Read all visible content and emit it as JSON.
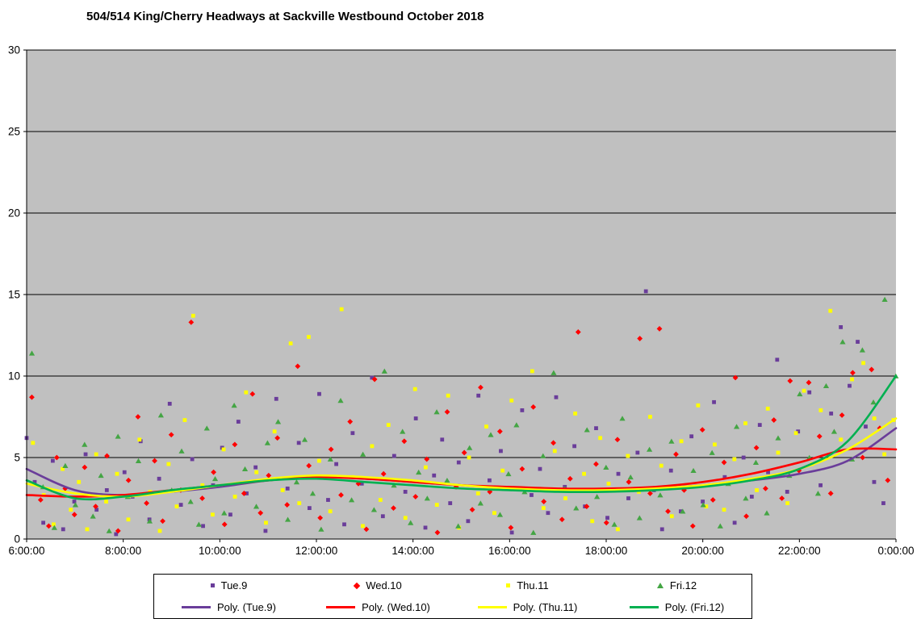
{
  "title": "504/514 King/Cherry Headways at Sackville Westbound October 2018",
  "colors": {
    "plot_bg": "#C0C0C0",
    "grid": "#000000",
    "tue": "#6A3D9A",
    "wed": "#FF0000",
    "thu": "#FFFF00",
    "fri_marker": "#44A544",
    "fri_line": "#00B050"
  },
  "chart_data": {
    "type": "scatter",
    "title": "504/514 King/Cherry Headways at Sackville Westbound October 2018",
    "xlabel": "",
    "ylabel": "",
    "x_axis": {
      "min": 6,
      "max": 24,
      "tick_hours": [
        6,
        8,
        10,
        12,
        14,
        16,
        18,
        20,
        22,
        24
      ],
      "tick_labels": [
        "6:00:00",
        "8:00:00",
        "10:00:00",
        "12:00:00",
        "14:00:00",
        "16:00:00",
        "18:00:00",
        "20:00:00",
        "22:00:00",
        "0:00:00"
      ]
    },
    "y_axis": {
      "min": 0,
      "max": 30,
      "ticks": [
        0,
        5,
        10,
        15,
        20,
        25,
        30
      ]
    },
    "grid": "horizontal",
    "legend_position": "bottom",
    "series": [
      {
        "name": "Tue.9",
        "marker": "square",
        "color": "#6A3D9A",
        "x_start": 6.0,
        "x_step": 0.2,
        "y": [
          6.2,
          3.5,
          1.0,
          4.8,
          0.6,
          2.3,
          5.2,
          1.8,
          3.0,
          0.3,
          4.1,
          2.6,
          6.0,
          1.2,
          3.7,
          8.3,
          2.1,
          4.9,
          0.8,
          3.3,
          5.6,
          1.5,
          7.2,
          2.8,
          4.4,
          0.5,
          8.6,
          3.1,
          5.9,
          1.9,
          8.9,
          2.4,
          4.6,
          0.9,
          6.5,
          3.4,
          9.9,
          1.4,
          5.1,
          2.9,
          7.4,
          0.7,
          3.9,
          6.1,
          2.2,
          4.7,
          1.1,
          8.8,
          3.6,
          5.4,
          0.4,
          7.9,
          2.7,
          4.3,
          1.6,
          8.7,
          3.2,
          5.7,
          2.0,
          6.8,
          1.3,
          4.0,
          2.5,
          5.3,
          15.2,
          3.0,
          0.6,
          4.2,
          1.7,
          6.3,
          2.3,
          8.4,
          3.8,
          1.0,
          5.0,
          2.6,
          7.0,
          4.1,
          11.0,
          2.9,
          6.6,
          9.0,
          3.3,
          7.7,
          13.0,
          9.4,
          12.1,
          6.9,
          3.5,
          2.2
        ]
      },
      {
        "name": "Wed.10",
        "marker": "diamond",
        "color": "#FF0000",
        "x_start": 6.05,
        "x_step": 0.2,
        "y": [
          8.7,
          2.4,
          0.8,
          5.0,
          3.1,
          1.5,
          4.4,
          2.0,
          5.1,
          0.5,
          3.6,
          7.5,
          2.2,
          4.8,
          1.1,
          6.4,
          3.0,
          13.3,
          2.5,
          4.1,
          0.9,
          5.8,
          2.8,
          8.9,
          1.6,
          3.9,
          6.2,
          2.1,
          10.6,
          4.5,
          1.3,
          5.5,
          2.7,
          7.2,
          3.4,
          0.6,
          9.8,
          4.0,
          1.9,
          6.0,
          2.6,
          4.9,
          0.4,
          7.8,
          3.2,
          5.3,
          1.8,
          9.3,
          2.9,
          6.6,
          0.7,
          4.3,
          8.1,
          2.3,
          5.9,
          1.2,
          3.7,
          12.7,
          2.0,
          4.6,
          1.0,
          6.1,
          3.5,
          12.3,
          2.8,
          12.9,
          1.7,
          5.2,
          3.0,
          0.8,
          6.7,
          2.4,
          4.7,
          9.9,
          1.4,
          5.6,
          3.1,
          7.3,
          2.5,
          9.7,
          4.2,
          9.6,
          6.3,
          2.8,
          7.6,
          10.2,
          5.0,
          10.4,
          6.8,
          3.6
        ]
      },
      {
        "name": "Thu.11",
        "marker": "square",
        "color": "#FFFF00",
        "x_start": 6.1,
        "x_step": 0.2,
        "y": [
          5.9,
          2.7,
          0.9,
          4.3,
          1.8,
          3.5,
          0.6,
          5.2,
          2.3,
          4.0,
          1.2,
          6.1,
          2.9,
          0.5,
          4.6,
          2.0,
          7.3,
          13.7,
          3.3,
          1.5,
          5.5,
          2.6,
          9.0,
          4.1,
          1.0,
          6.6,
          3.0,
          12.0,
          2.2,
          12.4,
          4.8,
          1.7,
          14.1,
          3.8,
          0.8,
          5.7,
          2.4,
          7.0,
          3.6,
          1.3,
          9.2,
          4.4,
          2.1,
          8.8,
          0.7,
          5.0,
          2.8,
          6.9,
          1.6,
          4.2,
          8.5,
          3.1,
          10.3,
          1.9,
          5.4,
          2.5,
          7.7,
          4.0,
          1.1,
          6.2,
          3.4,
          0.6,
          5.1,
          2.9,
          7.5,
          4.5,
          1.4,
          6.0,
          3.2,
          8.2,
          2.0,
          5.8,
          1.8,
          4.9,
          7.1,
          3.0,
          8.0,
          5.3,
          2.2,
          6.5,
          9.1,
          4.6,
          7.9,
          14.0,
          6.1,
          9.8,
          10.8,
          7.4,
          5.2,
          7.3
        ]
      },
      {
        "name": "Fri.12",
        "marker": "triangle",
        "color": "#44A544",
        "x_start": 6.15,
        "x_step": 0.2,
        "y": [
          11.4,
          3.2,
          0.7,
          4.5,
          2.1,
          5.8,
          1.4,
          3.9,
          0.5,
          6.3,
          2.6,
          4.8,
          1.1,
          7.6,
          3.0,
          5.4,
          2.3,
          0.9,
          6.8,
          3.7,
          1.6,
          8.2,
          4.3,
          2.0,
          5.9,
          7.2,
          1.2,
          3.5,
          6.1,
          2.8,
          0.6,
          4.9,
          8.5,
          2.4,
          5.2,
          1.8,
          10.3,
          3.3,
          6.6,
          1.0,
          4.1,
          2.5,
          7.8,
          3.6,
          0.8,
          5.6,
          2.2,
          6.4,
          1.5,
          4.0,
          7.0,
          2.9,
          0.4,
          5.1,
          10.2,
          3.1,
          1.9,
          6.7,
          2.6,
          4.4,
          0.9,
          7.4,
          3.8,
          1.3,
          5.5,
          2.7,
          6.0,
          1.7,
          4.2,
          2.1,
          5.3,
          0.8,
          3.4,
          6.9,
          2.5,
          4.7,
          1.6,
          6.2,
          3.9,
          8.9,
          5.0,
          2.8,
          9.4,
          6.6,
          12.1,
          4.9,
          11.6,
          8.4,
          14.7,
          10.0
        ]
      }
    ],
    "trend_lines": [
      {
        "name": "Poly. (Tue.9)",
        "color": "#6A3D9A",
        "points": [
          [
            6,
            4.3
          ],
          [
            7,
            3.0
          ],
          [
            8,
            2.7
          ],
          [
            9,
            2.9
          ],
          [
            10,
            3.2
          ],
          [
            11,
            3.6
          ],
          [
            12,
            3.8
          ],
          [
            13,
            3.7
          ],
          [
            14,
            3.5
          ],
          [
            15,
            3.3
          ],
          [
            16,
            3.1
          ],
          [
            17,
            3.0
          ],
          [
            18,
            3.0
          ],
          [
            19,
            3.1
          ],
          [
            20,
            3.3
          ],
          [
            21,
            3.6
          ],
          [
            22,
            4.0
          ],
          [
            23,
            4.8
          ],
          [
            24,
            6.8
          ]
        ]
      },
      {
        "name": "Poly. (Wed.10)",
        "color": "#FF0000",
        "points": [
          [
            6,
            2.7
          ],
          [
            7,
            2.6
          ],
          [
            8,
            2.7
          ],
          [
            9,
            3.0
          ],
          [
            10,
            3.3
          ],
          [
            11,
            3.6
          ],
          [
            12,
            3.8
          ],
          [
            13,
            3.7
          ],
          [
            14,
            3.5
          ],
          [
            15,
            3.3
          ],
          [
            16,
            3.2
          ],
          [
            17,
            3.1
          ],
          [
            18,
            3.1
          ],
          [
            19,
            3.2
          ],
          [
            20,
            3.5
          ],
          [
            21,
            4.0
          ],
          [
            22,
            4.7
          ],
          [
            23,
            5.5
          ],
          [
            24,
            5.5
          ]
        ]
      },
      {
        "name": "Poly. (Thu.11)",
        "color": "#FFFF00",
        "points": [
          [
            6,
            3.4
          ],
          [
            7,
            2.8
          ],
          [
            8,
            2.6
          ],
          [
            9,
            2.9
          ],
          [
            10,
            3.3
          ],
          [
            11,
            3.7
          ],
          [
            12,
            3.9
          ],
          [
            13,
            3.8
          ],
          [
            14,
            3.6
          ],
          [
            15,
            3.3
          ],
          [
            16,
            3.1
          ],
          [
            17,
            3.0
          ],
          [
            18,
            3.0
          ],
          [
            19,
            3.1
          ],
          [
            20,
            3.3
          ],
          [
            21,
            3.7
          ],
          [
            22,
            4.3
          ],
          [
            23,
            5.5
          ],
          [
            24,
            7.4
          ]
        ]
      },
      {
        "name": "Poly. (Fri.12)",
        "color": "#00B050",
        "points": [
          [
            6,
            3.6
          ],
          [
            7,
            2.5
          ],
          [
            8,
            2.6
          ],
          [
            9,
            3.0
          ],
          [
            10,
            3.3
          ],
          [
            11,
            3.6
          ],
          [
            12,
            3.7
          ],
          [
            13,
            3.5
          ],
          [
            14,
            3.3
          ],
          [
            15,
            3.1
          ],
          [
            16,
            3.0
          ],
          [
            17,
            2.9
          ],
          [
            18,
            2.9
          ],
          [
            19,
            3.0
          ],
          [
            20,
            3.2
          ],
          [
            21,
            3.6
          ],
          [
            22,
            4.3
          ],
          [
            23,
            6.0
          ],
          [
            24,
            10.0
          ]
        ]
      }
    ]
  },
  "legend": {
    "scatter": [
      {
        "label": "Tue.9",
        "marker": "square",
        "color": "#6A3D9A"
      },
      {
        "label": "Wed.10",
        "marker": "diamond",
        "color": "#FF0000"
      },
      {
        "label": "Thu.11",
        "marker": "square",
        "color": "#FFFF00"
      },
      {
        "label": "Fri.12",
        "marker": "triangle",
        "color": "#44A544"
      }
    ],
    "poly": [
      {
        "label": "Poly. (Tue.9)",
        "color": "#6A3D9A"
      },
      {
        "label": "Poly. (Wed.10)",
        "color": "#FF0000"
      },
      {
        "label": "Poly. (Thu.11)",
        "color": "#FFFF00"
      },
      {
        "label": "Poly. (Fri.12)",
        "color": "#00B050"
      }
    ]
  }
}
